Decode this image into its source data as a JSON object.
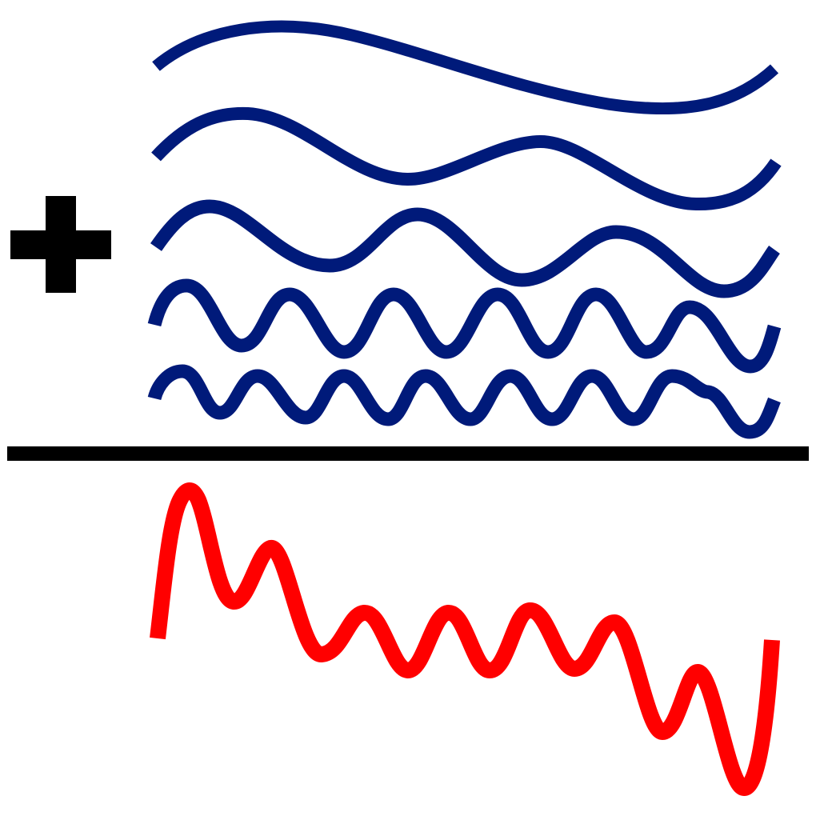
{
  "colors": {
    "background": "#ffffff",
    "component_wave": "#001a7a",
    "sum_wave": "#ff0000",
    "operator": "#000000",
    "divider": "#000000"
  },
  "operator_icon": "plus-icon",
  "component_waves": [
    {
      "id": "wave-1",
      "cycles": 1
    },
    {
      "id": "wave-2",
      "cycles": 2
    },
    {
      "id": "wave-3",
      "cycles": 3
    },
    {
      "id": "wave-4",
      "cycles": 6
    },
    {
      "id": "wave-5",
      "cycles": 8
    }
  ],
  "result_wave": {
    "id": "sum-wave",
    "description_icon": "sum-waveform"
  }
}
